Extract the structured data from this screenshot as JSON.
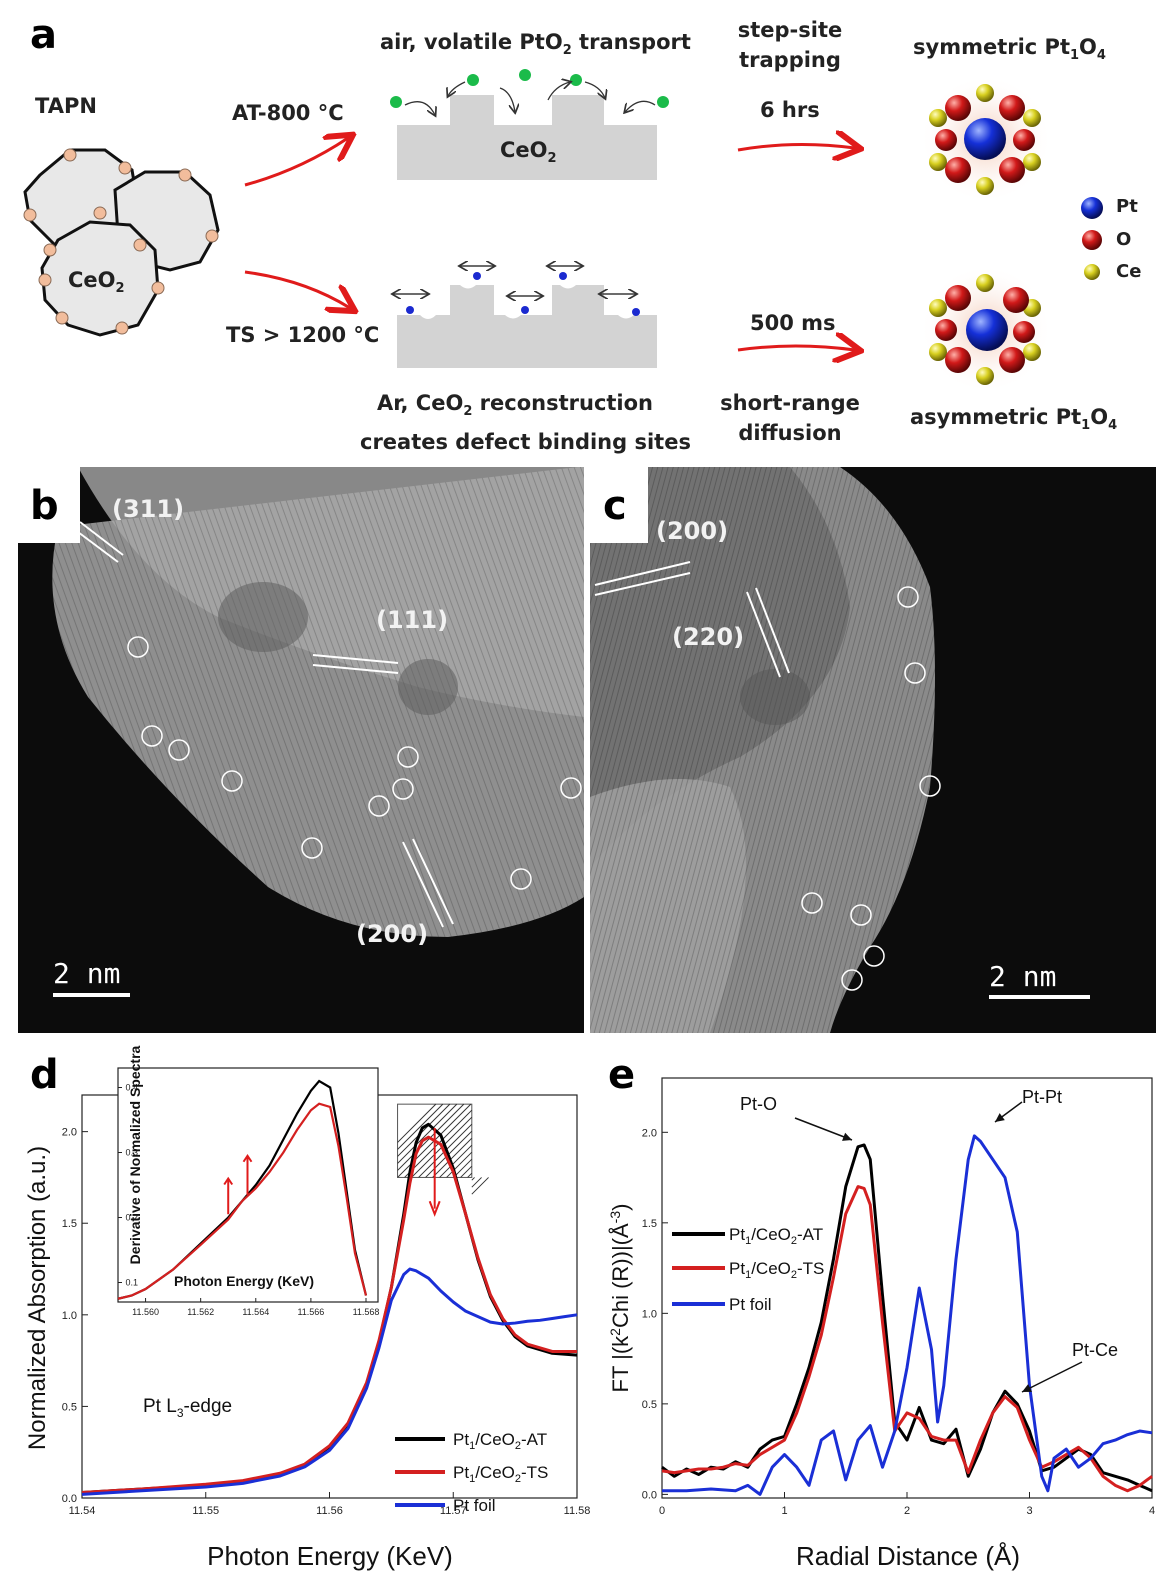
{
  "panels": {
    "a": "a",
    "b": "b",
    "c": "c",
    "d": "d",
    "e": "e"
  },
  "schematic": {
    "tapn": "TAPN",
    "ceo2": "CeO",
    "sub2": "2",
    "at_condition": "AT-800 °C",
    "ts_condition": "TS > 1200 °C",
    "air_label": "air, volatile PtO",
    "air_label_suffix": " transport",
    "ar_label_prefix": "Ar, CeO",
    "ar_label_suffix": " reconstruction",
    "ar_label_line2": "creates defect binding sites",
    "step_site_1": "step-site",
    "step_site_2": "trapping",
    "time_at": "6 hrs",
    "time_ts": "500 ms",
    "short_range_1": "short-range",
    "short_range_2": "diffusion",
    "symmetric_prefix": "symmetric Pt",
    "asymmetric_prefix": "asymmetric Pt",
    "sub1": "1",
    "o_letter": "O",
    "sub4": "4",
    "legend": {
      "pt": "Pt",
      "o": "O",
      "ce": "Ce"
    },
    "colors": {
      "pt": "#1530d8",
      "o": "#d11919",
      "ce": "#d8d020",
      "pto2": "#1bbb4a",
      "arrow": "#e01b1b",
      "ceo2_block": "#d3d3d3",
      "defect_atom": "#1b2ad0",
      "particle_dot": "#f2bd9c"
    }
  },
  "micrograph_b": {
    "planes": [
      "(311)",
      "(111)",
      "(200)"
    ],
    "scale_bar": "2 nm"
  },
  "micrograph_c": {
    "planes": [
      "(200)",
      "(220)"
    ],
    "scale_bar": "2 nm"
  },
  "chart_data": [
    {
      "panel": "d",
      "type": "line",
      "xlabel": "Photon Energy (KeV)",
      "ylabel": "Normalized Absorption (a.u.)",
      "xlim": [
        11.54,
        11.58
      ],
      "ylim": [
        0.0,
        2.2
      ],
      "x_ticks": [
        "11.54",
        "11.55",
        "11.56",
        "11.57",
        "11.58"
      ],
      "y_ticks": [
        "0.0",
        "0.5",
        "1.0",
        "1.5",
        "2.0"
      ],
      "annotation": "Pt L",
      "annotation_sub": "3",
      "annotation_suffix": "-edge",
      "legend_labels": [
        {
          "main": "Pt",
          "sub": "1",
          "mid": "/CeO",
          "sub2": "2",
          "tail": "-AT"
        },
        {
          "main": "Pt",
          "sub": "1",
          "mid": "/CeO",
          "sub2": "2",
          "tail": "-TS"
        },
        {
          "main": "Pt foil",
          "sub": "",
          "mid": "",
          "sub2": "",
          "tail": ""
        }
      ],
      "series": [
        {
          "color": "#000000",
          "x": [
            11.54,
            11.545,
            11.55,
            11.553,
            11.556,
            11.558,
            11.56,
            11.5615,
            11.563,
            11.564,
            11.565,
            11.566,
            11.5665,
            11.567,
            11.5675,
            11.568,
            11.569,
            11.57,
            11.571,
            11.572,
            11.573,
            11.574,
            11.575,
            11.576,
            11.578,
            11.58
          ],
          "y": [
            0.03,
            0.05,
            0.07,
            0.09,
            0.13,
            0.18,
            0.28,
            0.4,
            0.62,
            0.85,
            1.15,
            1.55,
            1.78,
            1.94,
            2.02,
            2.04,
            1.98,
            1.8,
            1.55,
            1.3,
            1.1,
            0.97,
            0.88,
            0.83,
            0.79,
            0.78
          ]
        },
        {
          "color": "#d42020",
          "x": [
            11.54,
            11.545,
            11.55,
            11.553,
            11.556,
            11.558,
            11.56,
            11.5615,
            11.563,
            11.564,
            11.565,
            11.566,
            11.5665,
            11.567,
            11.5675,
            11.568,
            11.569,
            11.57,
            11.571,
            11.572,
            11.573,
            11.574,
            11.575,
            11.576,
            11.578,
            11.58
          ],
          "y": [
            0.03,
            0.05,
            0.075,
            0.095,
            0.135,
            0.185,
            0.285,
            0.41,
            0.63,
            0.86,
            1.15,
            1.52,
            1.72,
            1.88,
            1.95,
            1.97,
            1.93,
            1.78,
            1.55,
            1.31,
            1.11,
            0.98,
            0.89,
            0.84,
            0.8,
            0.8
          ]
        },
        {
          "color": "#1a2fd6",
          "x": [
            11.54,
            11.545,
            11.55,
            11.553,
            11.556,
            11.558,
            11.56,
            11.5615,
            11.563,
            11.564,
            11.565,
            11.566,
            11.5665,
            11.567,
            11.568,
            11.569,
            11.57,
            11.571,
            11.572,
            11.573,
            11.574,
            11.575,
            11.576,
            11.577,
            11.578,
            11.579,
            11.58
          ],
          "y": [
            0.02,
            0.04,
            0.06,
            0.08,
            0.12,
            0.17,
            0.26,
            0.38,
            0.6,
            0.82,
            1.08,
            1.22,
            1.25,
            1.24,
            1.2,
            1.13,
            1.07,
            1.02,
            0.99,
            0.96,
            0.95,
            0.955,
            0.965,
            0.97,
            0.98,
            0.99,
            1.0
          ]
        }
      ],
      "inset": {
        "xlabel": "Photon Energy (KeV)",
        "ylabel": "Derivative of Normalized Spectra",
        "xlim": [
          11.559,
          11.568
        ],
        "ylim": [
          0.07,
          0.43
        ],
        "x_ticks": [
          "11.560",
          "11.562",
          "11.564",
          "11.566",
          "11.568"
        ],
        "y_ticks": [
          "0.1",
          "0.2",
          "0.3",
          "0.4"
        ],
        "series": [
          {
            "color": "#000000",
            "x": [
              11.559,
              11.5595,
              11.56,
              11.561,
              11.562,
              11.563,
              11.5635,
              11.564,
              11.5645,
              11.565,
              11.5655,
              11.566,
              11.5663,
              11.5667,
              11.567,
              11.5673,
              11.5676,
              11.568
            ],
            "y": [
              0.075,
              0.08,
              0.09,
              0.12,
              0.16,
              0.2,
              0.225,
              0.25,
              0.28,
              0.32,
              0.36,
              0.395,
              0.41,
              0.4,
              0.33,
              0.24,
              0.15,
              0.08
            ]
          },
          {
            "color": "#d42020",
            "x": [
              11.559,
              11.5595,
              11.56,
              11.561,
              11.562,
              11.563,
              11.5635,
              11.564,
              11.5645,
              11.565,
              11.5655,
              11.566,
              11.5663,
              11.5667,
              11.567,
              11.5673,
              11.5676,
              11.568
            ],
            "y": [
              0.075,
              0.08,
              0.09,
              0.12,
              0.158,
              0.197,
              0.225,
              0.245,
              0.27,
              0.3,
              0.335,
              0.365,
              0.375,
              0.37,
              0.31,
              0.23,
              0.145,
              0.08
            ]
          }
        ]
      }
    },
    {
      "panel": "e",
      "type": "line",
      "xlabel": "Radial Distance (Å)",
      "ylabel_parts": {
        "prefix": "FT |(k",
        "sup": "2",
        "mid": "Chi (R))|(Å",
        "sup2": "-3",
        "suffix": ")"
      },
      "xlim": [
        0,
        4
      ],
      "ylim": [
        -0.02,
        2.3
      ],
      "x_ticks": [
        "0",
        "1",
        "2",
        "3",
        "4"
      ],
      "y_ticks": [
        "0.0",
        "0.5",
        "1.0",
        "1.5",
        "2.0"
      ],
      "annotations": [
        "Pt-O",
        "Pt-Pt",
        "Pt-Ce"
      ],
      "legend_labels": [
        {
          "main": "Pt",
          "sub": "1",
          "mid": "/CeO",
          "sub2": "2",
          "tail": "-AT"
        },
        {
          "main": "Pt",
          "sub": "1",
          "mid": "/CeO",
          "sub2": "2",
          "tail": "-TS"
        },
        {
          "main": "Pt foil",
          "sub": "",
          "mid": "",
          "sub2": "",
          "tail": ""
        }
      ],
      "series": [
        {
          "color": "#000000",
          "x": [
            0,
            0.1,
            0.2,
            0.3,
            0.4,
            0.5,
            0.6,
            0.7,
            0.8,
            0.9,
            1.0,
            1.1,
            1.2,
            1.3,
            1.4,
            1.5,
            1.6,
            1.65,
            1.7,
            1.8,
            1.9,
            2.0,
            2.1,
            2.2,
            2.3,
            2.4,
            2.5,
            2.6,
            2.7,
            2.8,
            2.9,
            3.0,
            3.1,
            3.2,
            3.3,
            3.4,
            3.5,
            3.6,
            3.7,
            3.8,
            3.9,
            4.0
          ],
          "y": [
            0.15,
            0.1,
            0.14,
            0.11,
            0.15,
            0.14,
            0.18,
            0.15,
            0.25,
            0.3,
            0.32,
            0.5,
            0.7,
            0.95,
            1.3,
            1.7,
            1.92,
            1.93,
            1.85,
            1.1,
            0.4,
            0.3,
            0.48,
            0.3,
            0.28,
            0.36,
            0.1,
            0.25,
            0.45,
            0.57,
            0.5,
            0.35,
            0.13,
            0.15,
            0.2,
            0.25,
            0.22,
            0.12,
            0.1,
            0.08,
            0.05,
            0.02
          ]
        },
        {
          "color": "#d42020",
          "x": [
            0,
            0.1,
            0.2,
            0.3,
            0.4,
            0.5,
            0.6,
            0.7,
            0.8,
            0.9,
            1.0,
            1.1,
            1.2,
            1.3,
            1.4,
            1.5,
            1.6,
            1.65,
            1.7,
            1.8,
            1.9,
            2.0,
            2.1,
            2.2,
            2.3,
            2.4,
            2.5,
            2.6,
            2.7,
            2.8,
            2.9,
            3.0,
            3.1,
            3.2,
            3.3,
            3.4,
            3.5,
            3.6,
            3.7,
            3.8,
            3.9,
            4.0
          ],
          "y": [
            0.13,
            0.12,
            0.13,
            0.14,
            0.14,
            0.15,
            0.17,
            0.16,
            0.22,
            0.26,
            0.3,
            0.45,
            0.65,
            0.88,
            1.2,
            1.55,
            1.7,
            1.69,
            1.6,
            0.95,
            0.35,
            0.45,
            0.42,
            0.32,
            0.3,
            0.3,
            0.12,
            0.3,
            0.45,
            0.54,
            0.48,
            0.3,
            0.15,
            0.18,
            0.22,
            0.26,
            0.2,
            0.1,
            0.05,
            0.02,
            0.05,
            0.1
          ]
        },
        {
          "color": "#1a2fd6",
          "x": [
            0,
            0.2,
            0.4,
            0.6,
            0.7,
            0.8,
            0.9,
            1.0,
            1.1,
            1.2,
            1.3,
            1.4,
            1.5,
            1.6,
            1.7,
            1.8,
            1.9,
            2.0,
            2.1,
            2.2,
            2.25,
            2.3,
            2.4,
            2.5,
            2.55,
            2.6,
            2.7,
            2.8,
            2.9,
            3.0,
            3.1,
            3.15,
            3.2,
            3.3,
            3.4,
            3.5,
            3.6,
            3.7,
            3.8,
            3.9,
            4.0
          ],
          "y": [
            0.02,
            0.02,
            0.03,
            0.02,
            0.05,
            0.0,
            0.15,
            0.22,
            0.15,
            0.05,
            0.3,
            0.35,
            0.08,
            0.3,
            0.38,
            0.15,
            0.35,
            0.7,
            1.14,
            0.8,
            0.4,
            0.6,
            1.3,
            1.85,
            1.98,
            1.95,
            1.85,
            1.75,
            1.45,
            0.6,
            0.1,
            0.02,
            0.2,
            0.25,
            0.15,
            0.2,
            0.28,
            0.3,
            0.33,
            0.35,
            0.34
          ]
        }
      ]
    }
  ]
}
